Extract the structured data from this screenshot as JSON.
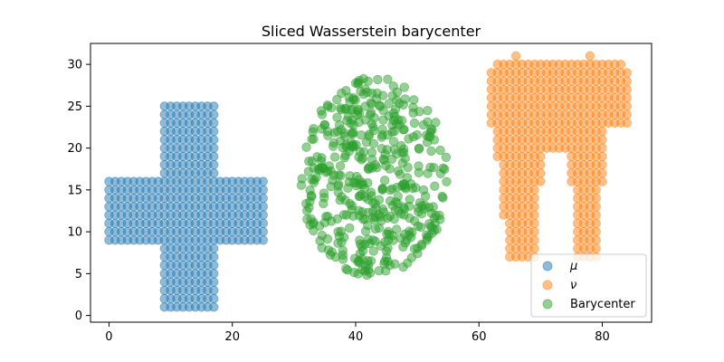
{
  "chart_data": {
    "type": "scatter",
    "title": "Sliced Wasserstein barycenter",
    "xlabel": "",
    "ylabel": "",
    "xlim": [
      -3,
      88
    ],
    "ylim": [
      -0.8,
      32.5
    ],
    "xticks": [
      0,
      20,
      40,
      60,
      80
    ],
    "yticks": [
      0,
      5,
      10,
      15,
      20,
      25,
      30
    ],
    "grid": false,
    "legend_position": "lower-right",
    "marker_alpha": 0.5,
    "series": [
      {
        "name": "μ",
        "color": "#1f77b4",
        "shape": "cross",
        "cross": {
          "vertical_bar": {
            "x": [
              9,
              17
            ],
            "y": [
              1,
              25
            ]
          },
          "horizontal_bar": {
            "x": [
              0,
              25
            ],
            "y": [
              9,
              16
            ]
          }
        }
      },
      {
        "name": "ν",
        "color": "#ff7f0e",
        "shape": "tooth",
        "tooth": {
          "crown": {
            "x": [
              62,
              84
            ],
            "y": [
              23,
              30
            ]
          },
          "left_root": {
            "x": [
              63,
              70
            ],
            "y": [
              7,
              23
            ]
          },
          "right_root": {
            "x": [
              75,
              80
            ],
            "y": [
              7,
              23
            ]
          }
        }
      },
      {
        "name": "Barycenter",
        "color": "#2ca02c",
        "shape": "ellipse-cloud",
        "ellipse": {
          "center": [
            43,
            16.5
          ],
          "rx": 12,
          "ry": 12,
          "points": 450
        }
      }
    ]
  }
}
